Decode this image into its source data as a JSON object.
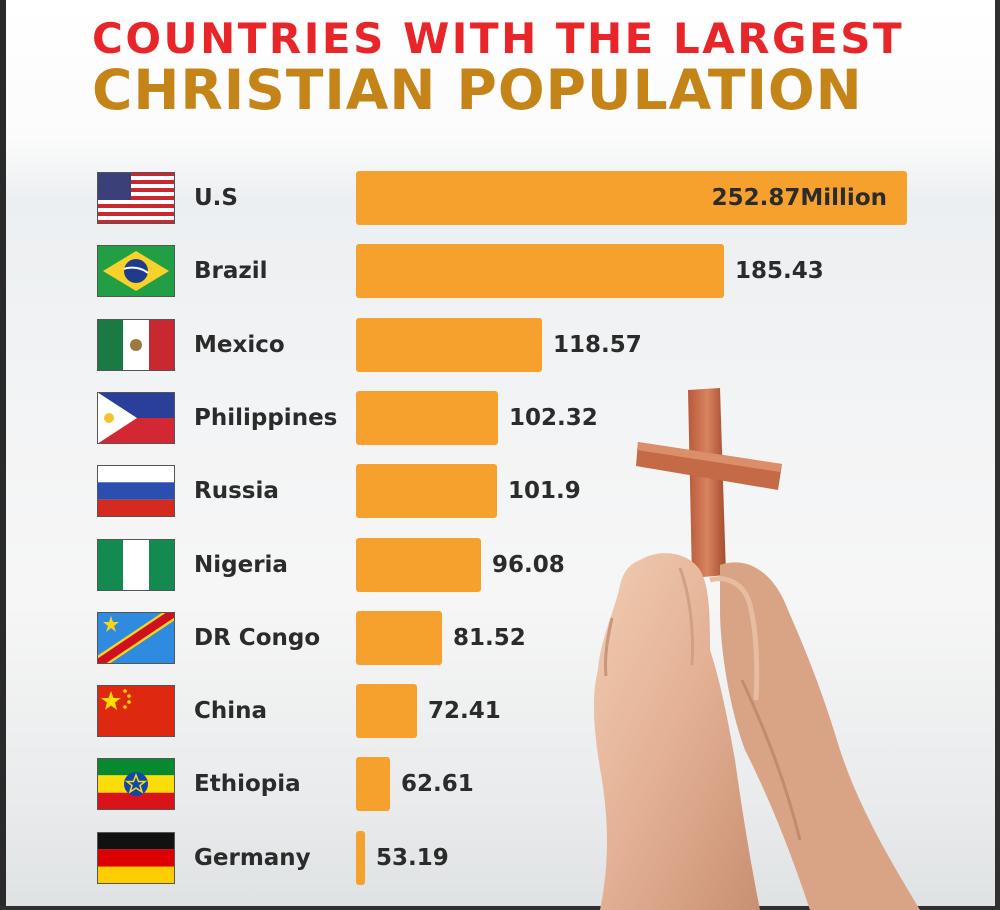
{
  "title_line1": "COUNTRIES WITH THE LARGEST",
  "title_line2": "CHRISTIAN POPULATION",
  "colors": {
    "title_red": "#e8262a",
    "title_gold": "#c48418",
    "bar": "#f6a12e"
  },
  "chart_data": {
    "type": "bar",
    "orientation": "horizontal",
    "categories": [
      "U.S",
      "Brazil",
      "Mexico",
      "Philippines",
      "Russia",
      "Nigeria",
      "DR Congo",
      "China",
      "Ethiopia",
      "Germany"
    ],
    "values": [
      252.87,
      185.43,
      118.57,
      102.32,
      101.9,
      96.08,
      81.52,
      72.41,
      62.61,
      53.19
    ],
    "labels": [
      "252.87Million",
      "185.43",
      "118.57",
      "102.32",
      "101.9",
      "96.08",
      "81.52",
      "72.41",
      "62.61",
      "53.19"
    ],
    "flag_icons": [
      "usa-flag-icon",
      "brazil-flag-icon",
      "mexico-flag-icon",
      "philippines-flag-icon",
      "russia-flag-icon",
      "nigeria-flag-icon",
      "dr-congo-flag-icon",
      "china-flag-icon",
      "ethiopia-flag-icon",
      "germany-flag-icon"
    ]
  }
}
